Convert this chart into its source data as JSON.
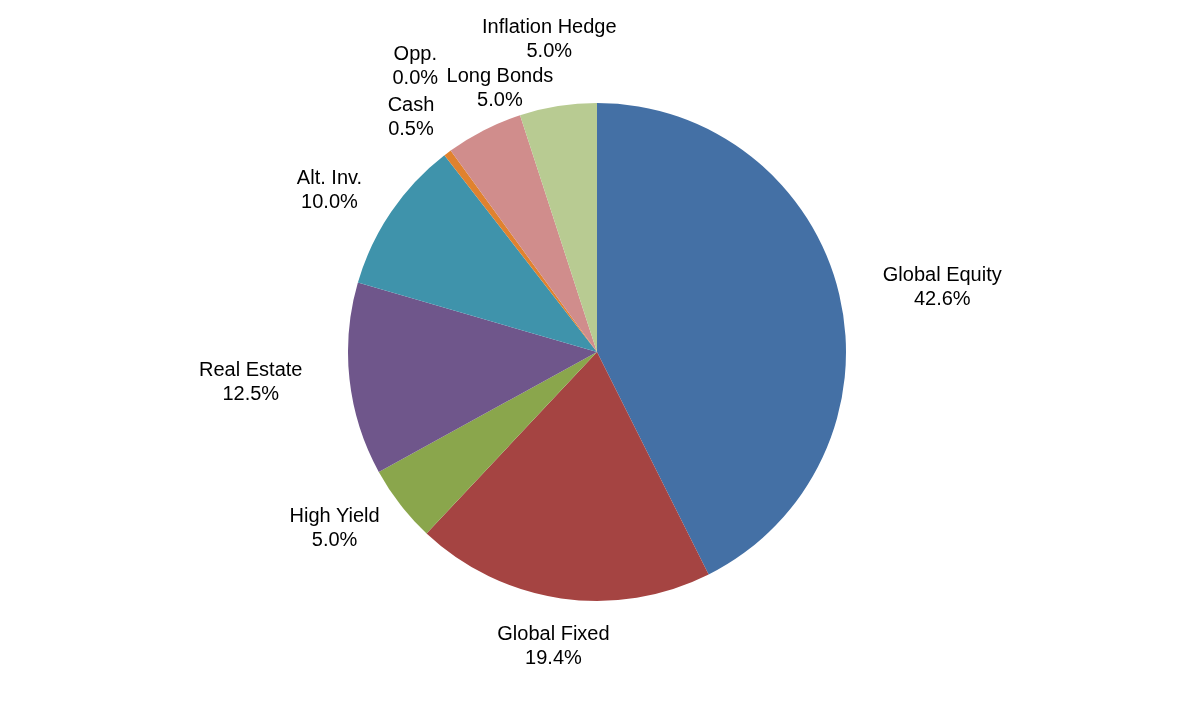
{
  "chart_data": {
    "type": "pie",
    "categories": [
      "Global Equity",
      "Global Fixed",
      "High Yield",
      "Real Estate",
      "Alt. Inv.",
      "Cash",
      "Opp.",
      "Long Bonds",
      "Inflation Hedge"
    ],
    "values": [
      42.6,
      19.4,
      5.0,
      12.5,
      10.0,
      0.5,
      0.0,
      5.0,
      5.0
    ],
    "value_labels": [
      "42.6%",
      "19.4%",
      "5.0%",
      "12.5%",
      "10.0%",
      "0.5%",
      "0.0%",
      "5.0%",
      "5.0%"
    ],
    "colors": [
      "#4470a5",
      "#a54442",
      "#8aa64c",
      "#6f568b",
      "#3f93ab",
      "#e0822f",
      "#9bb2d6",
      "#d08d8c",
      "#b8cb92"
    ],
    "legend": false
  }
}
